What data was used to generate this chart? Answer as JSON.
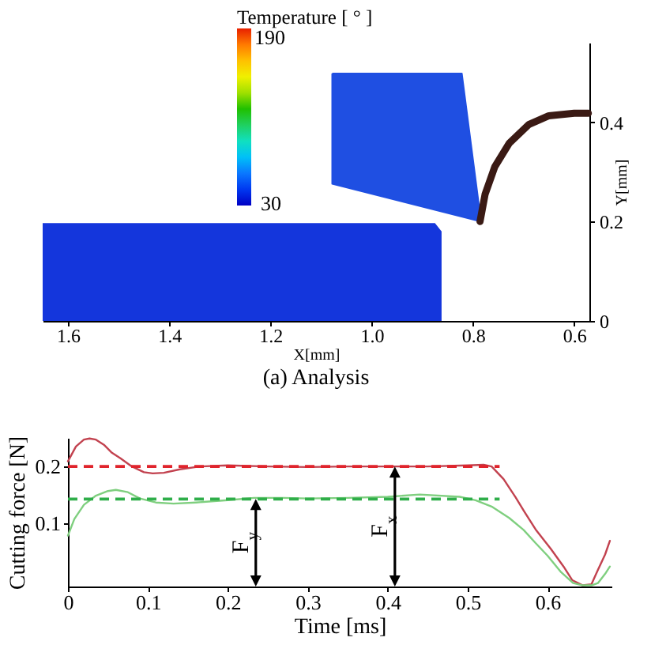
{
  "chart_data": [
    {
      "type": "line",
      "title": "(a) Analysis",
      "xlabel": "X[mm]",
      "ylabel": "Y[mm]",
      "xlim": [
        1.65,
        0.57
      ],
      "xticks": [
        1.6,
        1.4,
        1.2,
        {
          "value": 1,
          "label": "1.0"
        },
        0.8,
        0.6
      ],
      "ylim": [
        0,
        0.56
      ],
      "yticks": [
        0,
        0.2,
        0.4
      ],
      "clabel": "Temperature [ ° ]",
      "annotations": [
        "190",
        "30"
      ],
      "series": [
        {
          "type": "area",
          "color": "#1436dc",
          "x": [
            1.65,
            0.875,
            0.862
          ],
          "values": [
            0.197,
            0.197,
            0.18
          ]
        },
        {
          "type": "area",
          "color": "#1f4fe2",
          "x": [
            1.078,
            0.822,
            0.784,
            1.078,
            1.078
          ],
          "values": [
            0.498,
            0.498,
            0.2,
            0.276,
            0.498
          ]
        },
        {
          "type": "line",
          "color": "#3a1a14",
          "x": [
            0.786,
            0.776,
            0.757,
            0.728,
            0.69,
            0.65,
            0.6,
            0.572
          ],
          "values": [
            0.2,
            0.255,
            0.31,
            0.358,
            0.395,
            0.413,
            0.418,
            0.418
          ]
        }
      ]
    },
    {
      "type": "line",
      "xlabel": "Time [ms]",
      "ylabel": "Cutting force [N]",
      "xlim": [
        0,
        0.68
      ],
      "xticks": [
        0,
        0.1,
        0.2,
        0.3,
        0.4,
        0.5,
        0.6
      ],
      "ylim": [
        -0.01,
        0.25
      ],
      "yticks": [
        0.1,
        0.2
      ],
      "series": [
        {
          "color": "#c2424f",
          "line_style": "solid",
          "x": [
            0,
            0.01,
            0.02,
            0.027,
            0.035,
            0.045,
            0.055,
            0.066,
            0.08,
            0.095,
            0.106,
            0.12,
            0.14,
            0.165,
            0.2,
            0.25,
            0.3,
            0.35,
            0.4,
            0.45,
            0.5,
            0.52,
            0.53,
            0.545,
            0.56,
            0.571,
            0.585,
            0.604,
            0.62,
            0.631,
            0.644,
            0.655,
            0.663,
            0.672,
            0.678
          ],
          "values": [
            0.209,
            0.235,
            0.247,
            0.249,
            0.247,
            0.238,
            0.224,
            0.214,
            0.2,
            0.19,
            0.188,
            0.189,
            0.195,
            0.2,
            0.202,
            0.2,
            0.199,
            0.2,
            0.2,
            0.2,
            0.202,
            0.203,
            0.2,
            0.178,
            0.146,
            0.121,
            0.09,
            0.056,
            0.025,
            0.001,
            -0.008,
            -0.006,
            0.019,
            0.046,
            0.07
          ]
        },
        {
          "color": "#7fcf7f",
          "line_style": "solid",
          "x": [
            0,
            0.008,
            0.02,
            0.035,
            0.05,
            0.06,
            0.075,
            0.09,
            0.11,
            0.132,
            0.16,
            0.2,
            0.233,
            0.27,
            0.3,
            0.35,
            0.4,
            0.44,
            0.49,
            0.51,
            0.53,
            0.552,
            0.57,
            0.585,
            0.6,
            0.617,
            0.632,
            0.644,
            0.655,
            0.663,
            0.672,
            0.678
          ],
          "values": [
            0.079,
            0.108,
            0.133,
            0.149,
            0.157,
            0.159,
            0.155,
            0.144,
            0.137,
            0.135,
            0.137,
            0.141,
            0.145,
            0.145,
            0.144,
            0.145,
            0.147,
            0.151,
            0.147,
            0.141,
            0.13,
            0.11,
            0.089,
            0.066,
            0.044,
            0.015,
            -0.004,
            -0.008,
            -0.008,
            -0.004,
            0.012,
            0.025
          ]
        },
        {
          "color": "#e0242c",
          "line_style": "dashed",
          "x": [
            0,
            0.54
          ],
          "values": [
            0.2,
            0.2
          ]
        },
        {
          "color": "#2fae4a",
          "line_style": "dashed",
          "x": [
            0,
            0.54
          ],
          "values": [
            0.143,
            0.143
          ]
        }
      ],
      "annotations": [
        {
          "text": "F$_{y}$",
          "x": 0.235,
          "y": 0.143
        },
        {
          "text": "F$_{x}$",
          "x": 0.409,
          "y": 0.2
        }
      ]
    }
  ]
}
